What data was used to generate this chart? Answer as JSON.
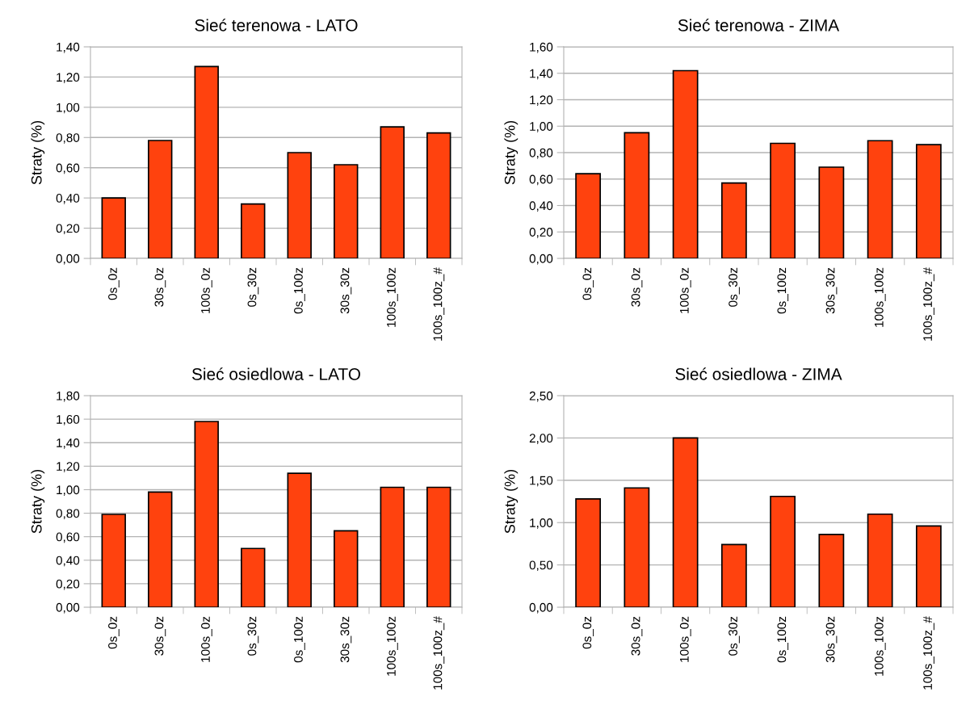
{
  "chart_data": [
    {
      "type": "bar",
      "title": "Sieć terenowa - LATO",
      "ylabel": "Straty (%)",
      "categories": [
        "0s_0z",
        "30s_0z",
        "100s_0z",
        "0s_30z",
        "0s_100z",
        "30s_30z",
        "100s_100z",
        "100s_100z_#"
      ],
      "values": [
        0.4,
        0.78,
        1.27,
        0.36,
        0.7,
        0.62,
        0.87,
        0.83
      ],
      "color": "#ff420e",
      "ylim": [
        0,
        1.4
      ],
      "yticks": [
        {
          "value": 0,
          "label": "0,00"
        },
        {
          "value": 0.2,
          "label": "0,20"
        },
        {
          "value": 0.4,
          "label": "0,40"
        },
        {
          "value": 0.6,
          "label": "0,60"
        },
        {
          "value": 0.8,
          "label": "0,80"
        },
        {
          "value": 1.0,
          "label": "1,00"
        },
        {
          "value": 1.2,
          "label": "1,20"
        },
        {
          "value": 1.4,
          "label": "1,40"
        }
      ],
      "grid": "y"
    },
    {
      "type": "bar",
      "title": "Sieć terenowa - ZIMA",
      "ylabel": "Straty (%)",
      "categories": [
        "0s_0z",
        "30s_0z",
        "100s_0z",
        "0s_30z",
        "0s_100z",
        "30s_30z",
        "100s_100z",
        "100s_100z_#"
      ],
      "values": [
        0.64,
        0.95,
        1.42,
        0.57,
        0.87,
        0.69,
        0.89,
        0.86
      ],
      "color": "#ff420e",
      "ylim": [
        0,
        1.6
      ],
      "yticks": [
        {
          "value": 0,
          "label": "0,00"
        },
        {
          "value": 0.2,
          "label": "0,20"
        },
        {
          "value": 0.4,
          "label": "0,40"
        },
        {
          "value": 0.6,
          "label": "0,60"
        },
        {
          "value": 0.8,
          "label": "0,80"
        },
        {
          "value": 1.0,
          "label": "1,00"
        },
        {
          "value": 1.2,
          "label": "1,20"
        },
        {
          "value": 1.4,
          "label": "1,40"
        },
        {
          "value": 1.6,
          "label": "1,60"
        }
      ],
      "grid": "y"
    },
    {
      "type": "bar",
      "title": "Sieć osiedlowa - LATO",
      "ylabel": "Straty (%)",
      "categories": [
        "0s_0z",
        "30s_0z",
        "100s_0z",
        "0s_30z",
        "0s_100z",
        "30s_30z",
        "100s_100z",
        "100s_100z_#"
      ],
      "values": [
        0.79,
        0.98,
        1.58,
        0.5,
        1.14,
        0.65,
        1.02,
        1.02
      ],
      "color": "#ff420e",
      "ylim": [
        0,
        1.8
      ],
      "yticks": [
        {
          "value": 0,
          "label": "0,00"
        },
        {
          "value": 0.2,
          "label": "0,20"
        },
        {
          "value": 0.4,
          "label": "0,40"
        },
        {
          "value": 0.6,
          "label": "0,60"
        },
        {
          "value": 0.8,
          "label": "0,80"
        },
        {
          "value": 1.0,
          "label": "1,00"
        },
        {
          "value": 1.2,
          "label": "1,20"
        },
        {
          "value": 1.4,
          "label": "1,40"
        },
        {
          "value": 1.6,
          "label": "1,60"
        },
        {
          "value": 1.8,
          "label": "1,80"
        }
      ],
      "grid": "y"
    },
    {
      "type": "bar",
      "title": "Sieć osiedlowa - ZIMA",
      "ylabel": "Straty (%)",
      "categories": [
        "0s_0z",
        "30s_0z",
        "100s_0z",
        "0s_30z",
        "0s_100z",
        "30s_30z",
        "100s_100z",
        "100s_100z_#"
      ],
      "values": [
        1.28,
        1.41,
        2.0,
        0.74,
        1.31,
        0.86,
        1.1,
        0.96
      ],
      "color": "#ff420e",
      "ylim": [
        0,
        2.5
      ],
      "yticks": [
        {
          "value": 0,
          "label": "0,00"
        },
        {
          "value": 0.5,
          "label": "0,50"
        },
        {
          "value": 1.0,
          "label": "1,00"
        },
        {
          "value": 1.5,
          "label": "1,50"
        },
        {
          "value": 2.0,
          "label": "2,00"
        },
        {
          "value": 2.5,
          "label": "2,50"
        }
      ],
      "grid": "y"
    }
  ]
}
